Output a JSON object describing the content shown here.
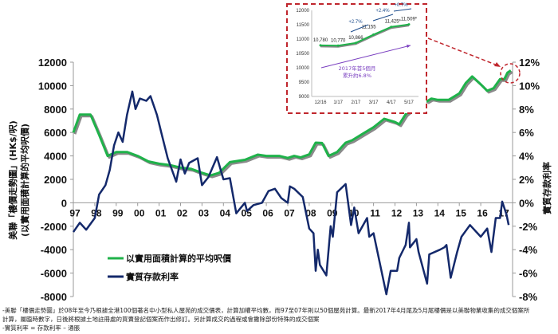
{
  "chart_data": {
    "type": "line",
    "title": "",
    "left_axis": {
      "label_line1": "美聯「樓價走勢圖」(HK$/呎)",
      "label_line2": "(以實用面積計算的平均呎價)",
      "ylim": [
        -8000,
        12000
      ],
      "ticks": [
        "12000",
        "10000",
        "8000",
        "6000",
        "4000",
        "2000",
        "0",
        "-2000",
        "-4000",
        "-6000",
        "-8000"
      ],
      "tick_values": [
        12000,
        10000,
        8000,
        6000,
        4000,
        2000,
        0,
        -2000,
        -4000,
        -6000,
        -8000
      ]
    },
    "right_axis": {
      "label": "實質存款利率",
      "ylim": [
        -8,
        12
      ],
      "ticks": [
        "12%",
        "10%",
        "8%",
        "6%",
        "4%",
        "2%",
        "0%",
        "-2%",
        "-4%",
        "-6%",
        "-8%"
      ],
      "tick_values": [
        12,
        10,
        8,
        6,
        4,
        2,
        0,
        -2,
        -4,
        -6,
        -8
      ]
    },
    "x_axis": {
      "labels": [
        "97",
        "98",
        "99",
        "00",
        "01",
        "02",
        "03",
        "04",
        "05",
        "06",
        "07",
        "08",
        "09",
        "10",
        "11",
        "12",
        "13",
        "14",
        "15",
        "16",
        "17"
      ],
      "start_year": 1997
    },
    "legend": {
      "placement": "bottom-left",
      "entries": [
        "以實用面積計算的平均呎價",
        "實質存款利率"
      ]
    },
    "series": [
      {
        "name": "以實用面積計算的平均呎價",
        "axis": "left",
        "color": "#1fb24a",
        "x": [
          1997.0,
          1997.3,
          1997.8,
          1998.2,
          1998.6,
          1999.0,
          1999.5,
          2000.0,
          2000.5,
          2001.0,
          2001.5,
          2002.0,
          2002.5,
          2003.0,
          2003.4,
          2003.8,
          2004.3,
          2005.0,
          2005.6,
          2006.0,
          2006.6,
          2007.0,
          2007.3,
          2007.6,
          2008.0,
          2008.3,
          2008.6,
          2008.9,
          2009.3,
          2009.7,
          2010.0,
          2010.5,
          2011.0,
          2011.5,
          2012.0,
          2012.2,
          2012.5,
          2013.0,
          2013.2,
          2013.5,
          2013.7,
          2014.0,
          2014.5,
          2015.0,
          2015.3,
          2015.6,
          2016.0,
          2016.3,
          2016.6,
          2016.9,
          2017.1,
          2017.25,
          2017.4
        ],
        "values": [
          6000,
          7530,
          7530,
          5800,
          4000,
          4330,
          4330,
          4000,
          3530,
          3330,
          3220,
          3000,
          2890,
          2560,
          2330,
          2560,
          3470,
          3670,
          4110,
          4000,
          4000,
          3820,
          4000,
          3870,
          4130,
          5130,
          5100,
          4000,
          4330,
          5130,
          5330,
          5890,
          6440,
          7170,
          6890,
          6700,
          7560,
          8330,
          9000,
          8670,
          8890,
          8780,
          8780,
          9330,
          10220,
          10780,
          10110,
          9560,
          9780,
          10560,
          10560,
          11110,
          11290
        ]
      },
      {
        "name": "實質存款利率",
        "axis": "right",
        "color": "#14296b",
        "x": [
          1997.0,
          1997.3,
          1997.6,
          1998.0,
          1998.2,
          1998.5,
          1998.7,
          1998.9,
          1999.1,
          1999.3,
          1999.5,
          1999.75,
          1999.9,
          2000.1,
          2000.4,
          2000.6,
          2000.9,
          2001.1,
          2001.4,
          2001.8,
          2002.0,
          2002.2,
          2002.4,
          2002.8,
          2003.0,
          2003.3,
          2003.7,
          2004.0,
          2004.3,
          2004.6,
          2005.0,
          2005.1,
          2005.4,
          2005.8,
          2006.1,
          2006.4,
          2006.7,
          2007.0,
          2007.1,
          2007.3,
          2007.7,
          2008.0,
          2008.2,
          2008.3,
          2008.4,
          2008.5,
          2008.8,
          2009.0,
          2009.1,
          2009.3,
          2009.7,
          2009.95,
          2010.1,
          2010.3,
          2010.7,
          2010.8,
          2011.0,
          2011.6,
          2011.8,
          2012.1,
          2012.2,
          2012.5,
          2012.65,
          2012.7,
          2013.0,
          2013.1,
          2013.5,
          2013.6,
          2014.1,
          2014.3,
          2014.4,
          2014.6,
          2014.9,
          2015.1,
          2015.5,
          2016.0,
          2016.3,
          2016.5,
          2016.7,
          2016.9,
          2017.0,
          2017.2,
          2017.3
        ],
        "values": [
          -2.5,
          -1.7,
          -2.3,
          -1.3,
          0.7,
          1.5,
          2.8,
          4.9,
          6.0,
          5.2,
          7.5,
          9.5,
          8.0,
          8.9,
          8.7,
          9.1,
          7.5,
          6.0,
          3.8,
          1.8,
          3.7,
          2.5,
          3.4,
          3.8,
          1.5,
          2.2,
          3.9,
          2.0,
          2.1,
          -0.9,
          0,
          -0.7,
          -0.2,
          0,
          1.0,
          1.2,
          0.4,
          0,
          1.4,
          1.2,
          0.5,
          -2.2,
          -2.6,
          -5.8,
          -4.0,
          -5.3,
          -6.2,
          -2.0,
          -2.9,
          0.9,
          1.6,
          -1.9,
          -0.4,
          -2.6,
          -1.3,
          -2.9,
          -2.6,
          -7.8,
          -5.8,
          -5.8,
          -4.7,
          -3.6,
          -1.7,
          -3.8,
          -3.1,
          -4.2,
          -6.9,
          -4.4,
          -4.0,
          -3.8,
          -3.6,
          -6.4,
          -4.2,
          -2.9,
          -1.9,
          -2.9,
          -2.2,
          -4.2,
          -1.3,
          -1.3,
          0.1,
          -1.0,
          -1.9
        ]
      }
    ],
    "inset": {
      "type": "line",
      "categories": [
        "12/16",
        "1/17",
        "2/17",
        "3/17",
        "4/17",
        "5/17"
      ],
      "values": [
        10780,
        10770,
        10866,
        11155,
        11425,
        11509
      ],
      "value_labels": [
        "10,780",
        "10,770",
        "10,866",
        "11,155",
        "11,425*",
        "11,509*"
      ],
      "ylim": [
        9000,
        12000
      ],
      "ticks": [
        "12000",
        "11500",
        "11000",
        "10500",
        "10000",
        "9500",
        "9000"
      ],
      "tick_values": [
        12000,
        11500,
        11000,
        10500,
        10000,
        9500,
        9000
      ],
      "changes": [
        "+2.7%",
        "+2.4%",
        "+0.7%"
      ],
      "annotation_line1": "2017年首5個月",
      "annotation_line2": "累升約6.8%",
      "line_color": "#1fb24a",
      "annotation_color": "#7a3fc0"
    }
  },
  "footnotes": [
    "-美聯「樓價走勢圖」於08年至今乃根據全港100個著名中小型私人屋苑的成交價表，計算加權平均數，而97至07年則以50個屋苑計算。最新2017年4月尾及5月尾樓價是以美聯物業收集的成交個案所",
    "計算，屬臨時數字，日後將根據土地註冊處的買賣登記個案而作出修訂。另計算成交的過程或會撇除部份特殊的成交個案",
    "-實質利率 = 存款利率 – 通脹"
  ]
}
